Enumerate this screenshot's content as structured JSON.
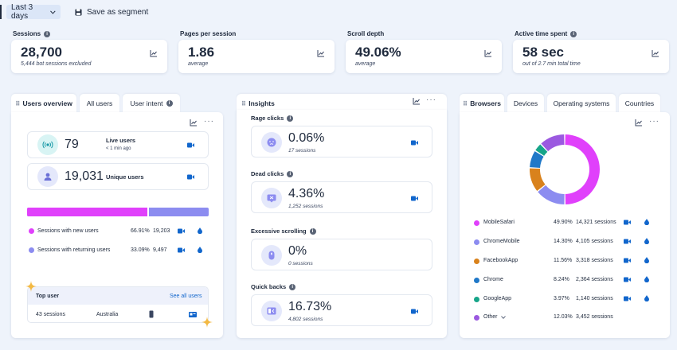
{
  "toolbar": {
    "date_range": "Last 3 days",
    "save_segment": "Save as segment"
  },
  "kpis": [
    {
      "label": "Sessions",
      "value": "28,700",
      "sub": "5,444 bot sessions excluded"
    },
    {
      "label": "Pages per session",
      "value": "1.86",
      "sub": "average"
    },
    {
      "label": "Scroll depth",
      "value": "49.06%",
      "sub": "average"
    },
    {
      "label": "Active time spent",
      "value": "58 sec",
      "sub": "out of 2.7 min total time"
    }
  ],
  "users_panel": {
    "tabs": [
      "Users overview",
      "All users",
      "User intent"
    ],
    "live_users": {
      "value": "79",
      "label": "Live users",
      "sub": "< 1 min ago"
    },
    "unique_users": {
      "value": "19,031",
      "label": "Unique users"
    },
    "new_share": 0.6691,
    "rows": [
      {
        "label": "Sessions with new users",
        "pct": "66.91%",
        "count": "19,203",
        "color": "#e040fb"
      },
      {
        "label": "Sessions with returning users",
        "pct": "33.09%",
        "count": "9,497",
        "color": "#8c8cf0"
      }
    ],
    "top_user": {
      "title": "Top user",
      "link": "See all users",
      "sessions": "43 sessions",
      "country": "Australia"
    }
  },
  "insights_panel": {
    "title": "Insights",
    "items": [
      {
        "label": "Rage clicks",
        "value": "0.06%",
        "sub": "17 sessions"
      },
      {
        "label": "Dead clicks",
        "value": "4.36%",
        "sub": "1,252 sessions"
      },
      {
        "label": "Excessive scrolling",
        "value": "0%",
        "sub": "0 sessions"
      },
      {
        "label": "Quick backs",
        "value": "16.73%",
        "sub": "4,802 sessions"
      }
    ]
  },
  "browsers_panel": {
    "tabs": [
      "Browsers",
      "Devices",
      "Operating systems",
      "Countries"
    ],
    "rows": [
      {
        "name": "MobileSafari",
        "pct": "49.90%",
        "sessions": "14,321 sessions",
        "value": 49.9,
        "color": "#e040fb"
      },
      {
        "name": "ChromeMobile",
        "pct": "14.30%",
        "sessions": "4,105 sessions",
        "value": 14.3,
        "color": "#8c8cf0"
      },
      {
        "name": "FacebookApp",
        "pct": "11.56%",
        "sessions": "3,318 sessions",
        "value": 11.56,
        "color": "#d9821c"
      },
      {
        "name": "Chrome",
        "pct": "8.24%",
        "sessions": "2,364 sessions",
        "value": 8.24,
        "color": "#1f78c8"
      },
      {
        "name": "GoogleApp",
        "pct": "3.97%",
        "sessions": "1,140 sessions",
        "value": 3.97,
        "color": "#17a589"
      },
      {
        "name": "Other",
        "pct": "12.03%",
        "sessions": "3,452 sessions",
        "value": 12.03,
        "color": "#9b59e0"
      }
    ]
  },
  "colors": {
    "accent": "#1166cc",
    "chip": "#dbe6f7"
  }
}
